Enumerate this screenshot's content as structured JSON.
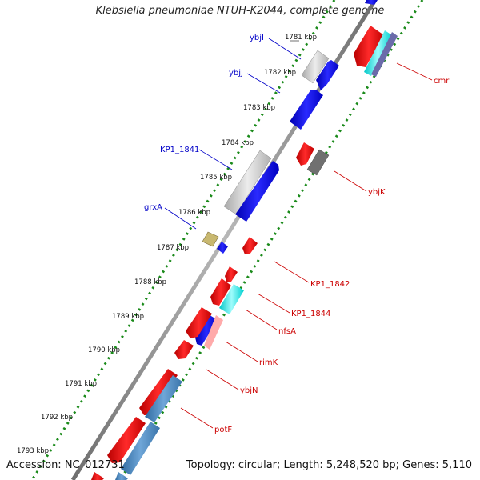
{
  "title": "Klebsiella pneumoniae NTUH-K2044, complete genome",
  "accession": "Accession: NC_012731",
  "summary": "Topology: circular; Length: 5,248,520 bp; Genes: 5,110",
  "colors": {
    "backbone": "#8a8a8a",
    "dots": "#1a8a1a",
    "forward_label": "#0000c8",
    "reverse_label": "#cc0000",
    "blue_gene": "#0000ee",
    "red_gene": "#ee0000",
    "gray_gene": "#c0c0c0",
    "steel_gene": "#4682b4",
    "cyan_gene": "#00e0e0"
  },
  "ticks": [
    "1781 kbp",
    "1782 kbp",
    "1783 kbp",
    "1784 kbp",
    "1785 kbp",
    "1786 kbp",
    "1787 kbp",
    "1788 kbp",
    "1789 kbp",
    "1790 kbp",
    "1791 kbp",
    "1792 kbp",
    "1793 kbp"
  ],
  "forward_labels": [
    "ybjI",
    "ybjJ",
    "KP1_1841",
    "grxA"
  ],
  "reverse_labels": [
    "cmr",
    "ybjK",
    "KP1_1842",
    "KP1_1844",
    "nfsA",
    "rimK",
    "ybjN",
    "potF"
  ]
}
